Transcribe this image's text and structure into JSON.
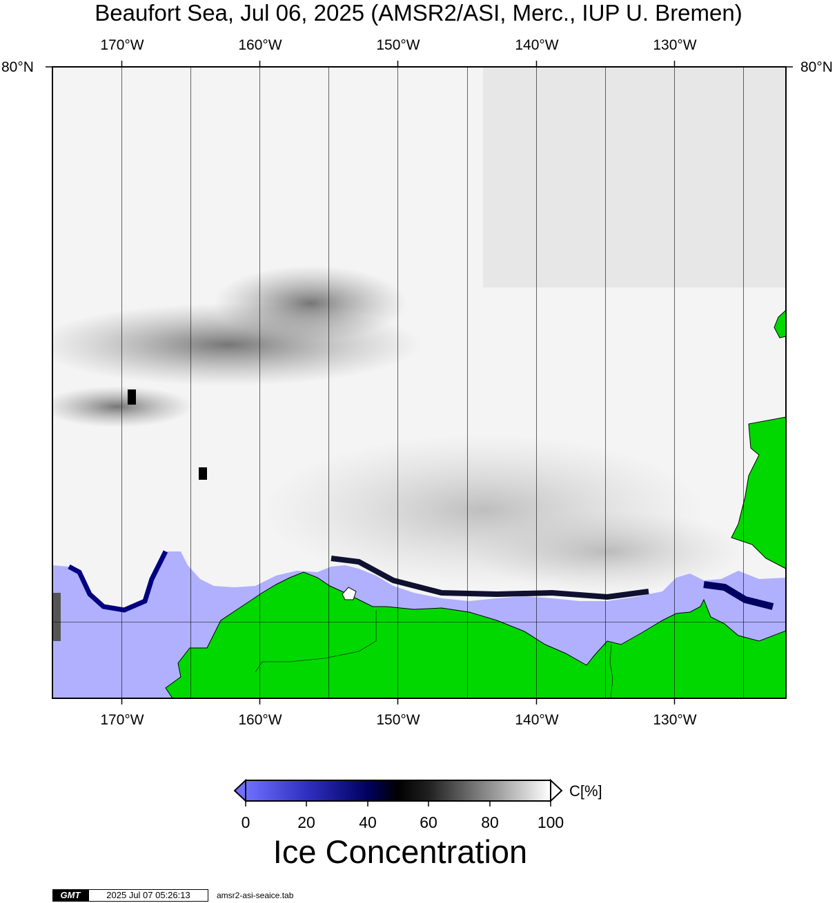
{
  "title": "Beaufort Sea, Jul 06, 2025 (AMSR2/ASI, Merc., IUP U. Bremen)",
  "longitude_labels_top": [
    "170°W",
    "160°W",
    "150°W",
    "140°W",
    "130°W"
  ],
  "longitude_labels_bottom": [
    "170°W",
    "160°W",
    "150°W",
    "140°W",
    "130°W"
  ],
  "latitude_labels": {
    "left": "80°N",
    "right": "80°N"
  },
  "colorbar": {
    "unit_label": "C[%]",
    "ticks": [
      "0",
      "20",
      "40",
      "60",
      "80",
      "100"
    ],
    "title": "Ice Concentration",
    "colors": {
      "low": "#7070ff",
      "mid_low": "#000080",
      "mid": "#000000",
      "high": "#ffffff"
    }
  },
  "colors": {
    "land": "#00d000",
    "open_water": "#b0b0ff",
    "frame": "#000000"
  },
  "footer": {
    "logo": "GMT",
    "timestamp": "2025 Jul 07 05:26:13",
    "script": "amsr2-asi-seaice.tab"
  }
}
